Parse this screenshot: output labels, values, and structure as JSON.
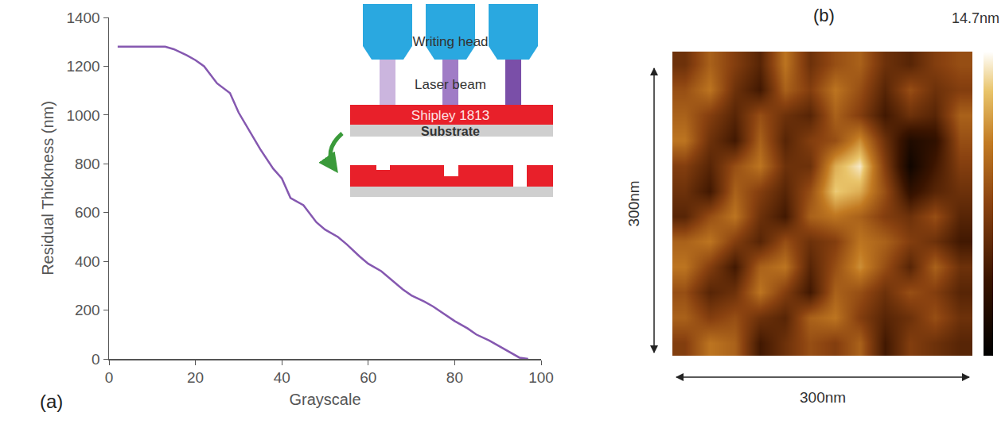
{
  "chart_data": [
    {
      "type": "line",
      "title": "(a)",
      "x_label": "Grayscale",
      "y_label": "Residual Thickness (nm)",
      "x": [
        2,
        13,
        15,
        18,
        20,
        22,
        25,
        28,
        30,
        33,
        35,
        38,
        40,
        42,
        45,
        48,
        50,
        53,
        55,
        58,
        60,
        63,
        65,
        68,
        70,
        73,
        75,
        78,
        80,
        83,
        85,
        88,
        90,
        93,
        95,
        97
      ],
      "values": [
        1280,
        1280,
        1270,
        1245,
        1225,
        1200,
        1130,
        1090,
        1010,
        920,
        860,
        780,
        740,
        660,
        630,
        560,
        530,
        500,
        470,
        420,
        390,
        360,
        330,
        285,
        260,
        235,
        215,
        180,
        155,
        125,
        100,
        75,
        55,
        25,
        5,
        0
      ],
      "color": "#8558b0",
      "xlim": [
        0,
        100
      ],
      "xticks": [
        0,
        20,
        40,
        60,
        80,
        100
      ],
      "ylim": [
        0,
        1400
      ],
      "yticks": [
        0,
        200,
        400,
        600,
        800,
        1000,
        1200,
        1400
      ],
      "grid": false,
      "annotations": [
        "Writing head",
        "Laser beam",
        "Shipley 1813",
        "Substrate"
      ]
    },
    {
      "type": "heatmap",
      "title": "(b)",
      "x_label": "300nm",
      "y_label": "300nm",
      "tick_labels": false,
      "z": [
        [
          6,
          9,
          7,
          5,
          10,
          6,
          8,
          9,
          6,
          5,
          7,
          8
        ],
        [
          8,
          10,
          6,
          4,
          9,
          7,
          10,
          8,
          5,
          8,
          6,
          7
        ],
        [
          9,
          7,
          5,
          8,
          6,
          5,
          9,
          7,
          4,
          6,
          5,
          9
        ],
        [
          10,
          6,
          4,
          9,
          5,
          7,
          8,
          11,
          6,
          2,
          3,
          8
        ],
        [
          7,
          5,
          8,
          10,
          6,
          6,
          12,
          14,
          7,
          1,
          4,
          7
        ],
        [
          6,
          4,
          9,
          7,
          5,
          8,
          13,
          12,
          8,
          3,
          5,
          6
        ],
        [
          5,
          8,
          10,
          6,
          4,
          9,
          10,
          9,
          7,
          6,
          8,
          5
        ],
        [
          9,
          10,
          7,
          5,
          8,
          6,
          7,
          10,
          9,
          7,
          6,
          4
        ],
        [
          10,
          7,
          4,
          9,
          10,
          5,
          8,
          11,
          8,
          5,
          9,
          6
        ],
        [
          8,
          5,
          6,
          10,
          7,
          4,
          9,
          8,
          6,
          8,
          7,
          5
        ],
        [
          9,
          7,
          8,
          6,
          5,
          9,
          10,
          7,
          5,
          6,
          8,
          6
        ],
        [
          7,
          10,
          9,
          4,
          6,
          8,
          7,
          9,
          4,
          7,
          6,
          5
        ]
      ],
      "colorbar": {
        "range": [
          0,
          14.7
        ],
        "ticks": [
          {
            "value": 14.7,
            "label": "14.7nm"
          }
        ]
      }
    }
  ]
}
